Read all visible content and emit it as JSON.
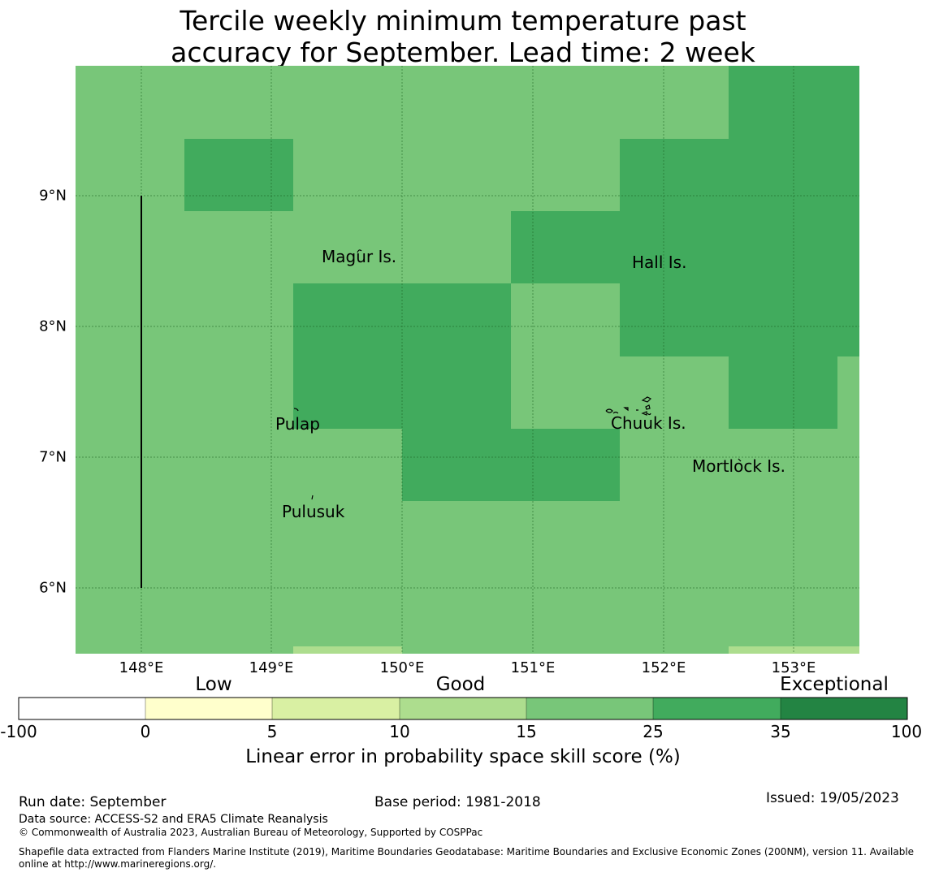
{
  "title": {
    "line1": "Tercile weekly minimum temperature past",
    "line2": "accuracy for September. Lead time: 2 week"
  },
  "map": {
    "colors": {
      "light_green": "#78c679",
      "mid_green": "#41ab5d",
      "pale_green": "#addd8e"
    },
    "lat_ticks": [
      "9°N",
      "8°N",
      "7°N",
      "6°N"
    ],
    "lon_ticks": [
      "148°E",
      "149°E",
      "150°E",
      "151°E",
      "152°E",
      "153°E"
    ],
    "places": [
      {
        "name": "Magur Is."
      },
      {
        "name": "Hall Is."
      },
      {
        "name": "Pulap"
      },
      {
        "name": "Chuuk Is."
      },
      {
        "name": "Mortlock Is."
      },
      {
        "name": "Pulusuk"
      }
    ]
  },
  "colorbar": {
    "categories": [
      "Low",
      "Good",
      "Exceptional"
    ],
    "labels": [
      "-100",
      "0",
      "5",
      "10",
      "15",
      "25",
      "35",
      "100"
    ],
    "colors": [
      "#ffffff",
      "#ffffcc",
      "#d9f0a3",
      "#addd8e",
      "#78c679",
      "#41ab5d",
      "#238443"
    ],
    "title": "Linear error in probability space skill score (%)"
  },
  "footer": {
    "run_date": "Run date: September",
    "base_period": "Base period: 1981-2018",
    "issued": "Issued: 19/05/2023",
    "data_source": "Data source: ACCESS-S2 and ERA5 Climate Reanalysis",
    "copyright": "© Commonwealth of Australia 2023, Australian Bureau of Meteorology, Supported by COSPPac",
    "shapefile_line1": "Shapefile data extracted from Flanders Marine Institute (2019), Maritime Boundaries Geodatabase: Maritime Boundaries and Exclusive Economic Zones (200NM), version 11. Available",
    "shapefile_line2": "online at http://www.marineregions.org/."
  }
}
